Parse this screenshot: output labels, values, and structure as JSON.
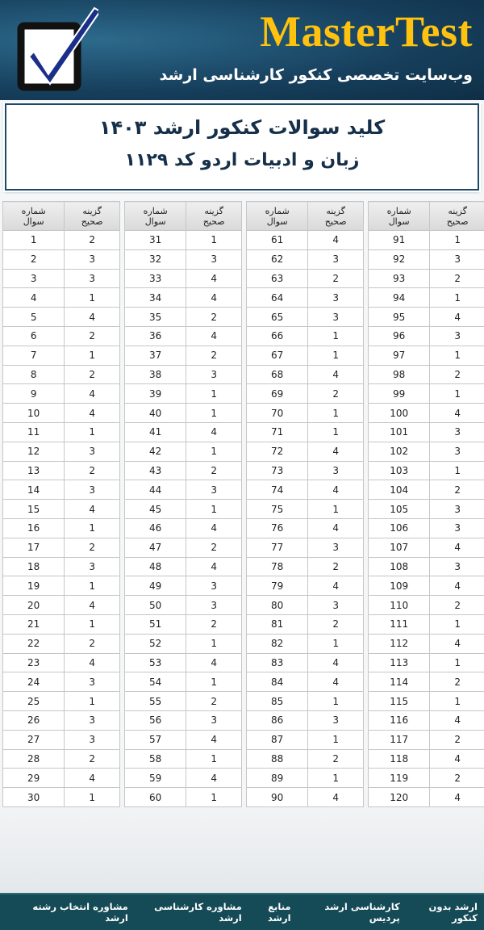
{
  "header": {
    "title": "MasterTest",
    "subtitle": "وب‌سایت تخصصی کنکور کارشناسی ارشد"
  },
  "banner": {
    "title": "کلید سوالات کنکور ارشد ۱۴۰۳",
    "subtitle": "زبان و ادبیات اردو کد ۱۱۲۹"
  },
  "tables": [
    {
      "headers": [
        "شماره سوال",
        "گزینه صحیح"
      ],
      "rows": [
        [
          1,
          2
        ],
        [
          2,
          3
        ],
        [
          3,
          3
        ],
        [
          4,
          1
        ],
        [
          5,
          4
        ],
        [
          6,
          2
        ],
        [
          7,
          1
        ],
        [
          8,
          2
        ],
        [
          9,
          4
        ],
        [
          10,
          4
        ],
        [
          11,
          1
        ],
        [
          12,
          3
        ],
        [
          13,
          2
        ],
        [
          14,
          3
        ],
        [
          15,
          4
        ],
        [
          16,
          1
        ],
        [
          17,
          2
        ],
        [
          18,
          3
        ],
        [
          19,
          1
        ],
        [
          20,
          4
        ],
        [
          21,
          1
        ],
        [
          22,
          2
        ],
        [
          23,
          4
        ],
        [
          24,
          3
        ],
        [
          25,
          1
        ],
        [
          26,
          3
        ],
        [
          27,
          3
        ],
        [
          28,
          2
        ],
        [
          29,
          4
        ],
        [
          30,
          1
        ]
      ]
    },
    {
      "headers": [
        "شماره سوال",
        "گزینه صحیح"
      ],
      "rows": [
        [
          31,
          1
        ],
        [
          32,
          3
        ],
        [
          33,
          4
        ],
        [
          34,
          4
        ],
        [
          35,
          2
        ],
        [
          36,
          4
        ],
        [
          37,
          2
        ],
        [
          38,
          3
        ],
        [
          39,
          1
        ],
        [
          40,
          1
        ],
        [
          41,
          4
        ],
        [
          42,
          1
        ],
        [
          43,
          2
        ],
        [
          44,
          3
        ],
        [
          45,
          1
        ],
        [
          46,
          4
        ],
        [
          47,
          2
        ],
        [
          48,
          4
        ],
        [
          49,
          3
        ],
        [
          50,
          3
        ],
        [
          51,
          2
        ],
        [
          52,
          1
        ],
        [
          53,
          4
        ],
        [
          54,
          1
        ],
        [
          55,
          2
        ],
        [
          56,
          3
        ],
        [
          57,
          4
        ],
        [
          58,
          1
        ],
        [
          59,
          4
        ],
        [
          60,
          1
        ]
      ]
    },
    {
      "headers": [
        "شماره سوال",
        "گزینه صحیح"
      ],
      "rows": [
        [
          61,
          4
        ],
        [
          62,
          3
        ],
        [
          63,
          2
        ],
        [
          64,
          3
        ],
        [
          65,
          3
        ],
        [
          66,
          1
        ],
        [
          67,
          1
        ],
        [
          68,
          4
        ],
        [
          69,
          2
        ],
        [
          70,
          1
        ],
        [
          71,
          1
        ],
        [
          72,
          4
        ],
        [
          73,
          3
        ],
        [
          74,
          4
        ],
        [
          75,
          1
        ],
        [
          76,
          4
        ],
        [
          77,
          3
        ],
        [
          78,
          2
        ],
        [
          79,
          4
        ],
        [
          80,
          3
        ],
        [
          81,
          2
        ],
        [
          82,
          1
        ],
        [
          83,
          4
        ],
        [
          84,
          4
        ],
        [
          85,
          1
        ],
        [
          86,
          3
        ],
        [
          87,
          1
        ],
        [
          88,
          2
        ],
        [
          89,
          1
        ],
        [
          90,
          4
        ]
      ]
    },
    {
      "headers": [
        "شماره سوال",
        "گزینه صحیح"
      ],
      "rows": [
        [
          91,
          1
        ],
        [
          92,
          3
        ],
        [
          93,
          2
        ],
        [
          94,
          1
        ],
        [
          95,
          4
        ],
        [
          96,
          3
        ],
        [
          97,
          1
        ],
        [
          98,
          2
        ],
        [
          99,
          1
        ],
        [
          100,
          4
        ],
        [
          101,
          3
        ],
        [
          102,
          3
        ],
        [
          103,
          1
        ],
        [
          104,
          2
        ],
        [
          105,
          3
        ],
        [
          106,
          3
        ],
        [
          107,
          4
        ],
        [
          108,
          3
        ],
        [
          109,
          4
        ],
        [
          110,
          2
        ],
        [
          111,
          1
        ],
        [
          112,
          4
        ],
        [
          113,
          1
        ],
        [
          114,
          2
        ],
        [
          115,
          1
        ],
        [
          116,
          4
        ],
        [
          117,
          2
        ],
        [
          118,
          4
        ],
        [
          119,
          2
        ],
        [
          120,
          4
        ]
      ]
    }
  ],
  "footer": {
    "links": [
      "ارشد بدون کنکور",
      "کارشناسی ارشد پردیس",
      "منابع ارشد",
      "مشاوره کارشناسی ارشد",
      "مشاوره انتخاب رشته ارشد"
    ]
  }
}
